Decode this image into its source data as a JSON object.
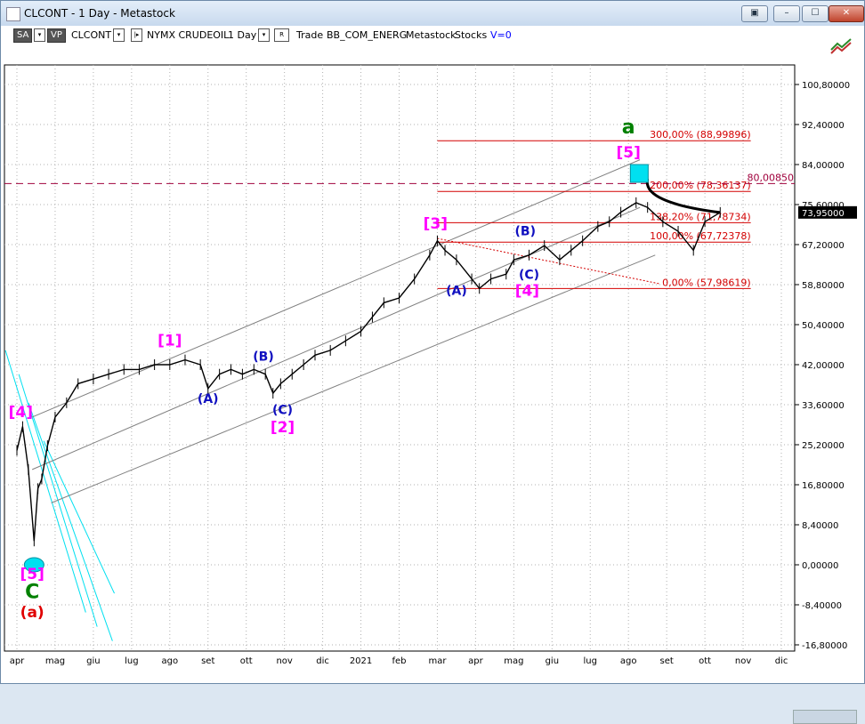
{
  "window": {
    "title": "CLCONT - 1 Day - Metastock",
    "buttons": [
      "▣",
      "–",
      "☐",
      "✕"
    ]
  },
  "toolbar": {
    "sa": "SA",
    "vp": "VP",
    "symbol": "CLCONT",
    "name": "NYMX CRUDEOIL",
    "period": "1 Day",
    "mode_btn": "R",
    "trade": "Trade",
    "bb": "BB_COM_ENERG",
    "metastock": "Metastock",
    "stocks": "Stocks",
    "v": "V=0"
  },
  "colors": {
    "price": "#000000",
    "channel": "#808080",
    "fib": "#d40000",
    "magenta": "#ff00ff",
    "blue": "#1010c0",
    "green": "#008000",
    "red": "#e00000",
    "cyan": "#00e0f0",
    "dashed": "#a0003c"
  },
  "chart_data": {
    "type": "line",
    "y_axis": {
      "ticks": [
        "100,80000",
        "92,40000",
        "84,00000",
        "75,60000",
        "67,20000",
        "58,80000",
        "50,40000",
        "42,00000",
        "33,60000",
        "25,20000",
        "16,80000",
        "8,40000",
        "0,00000",
        "-8,40000",
        "-16,80000"
      ],
      "tick_values": [
        100.8,
        92.4,
        84,
        75.6,
        67.2,
        58.8,
        50.4,
        42,
        33.6,
        25.2,
        16.8,
        8.4,
        0,
        -8.4,
        -16.8
      ],
      "ylim": [
        -16.8,
        108
      ]
    },
    "x_axis": {
      "ticks": [
        "apr",
        "mag",
        "giu",
        "lug",
        "ago",
        "set",
        "ott",
        "nov",
        "dic",
        "2021",
        "feb",
        "mar",
        "apr",
        "mag",
        "giu",
        "lug",
        "ago",
        "set",
        "ott",
        "nov",
        "dic"
      ],
      "tick_index": [
        0,
        1,
        2,
        3,
        4,
        5,
        6,
        7,
        8,
        9,
        10,
        11,
        12,
        13,
        14,
        15,
        16,
        17,
        18,
        19,
        20
      ]
    },
    "last_price": "73,95000",
    "dashed_level": {
      "label": "80,00850",
      "value": 80.0085
    },
    "fib_levels": [
      {
        "label": "300,00% (88,99896)",
        "value": 88.99896
      },
      {
        "label": "200,00% (78,36137)",
        "value": 78.36137
      },
      {
        "label": "138,20% (71,78734)",
        "value": 71.78734
      },
      {
        "label": "100,00% (67,72378)",
        "value": 67.72378
      },
      {
        "label": "0,00% (57,98619)",
        "value": 57.98619
      }
    ],
    "price_path": [
      [
        0,
        24
      ],
      [
        0.15,
        29
      ],
      [
        0.3,
        20
      ],
      [
        0.45,
        5
      ],
      [
        0.55,
        16
      ],
      [
        0.65,
        18
      ],
      [
        0.8,
        25
      ],
      [
        1.0,
        31
      ],
      [
        1.3,
        34
      ],
      [
        1.6,
        38
      ],
      [
        2.0,
        39
      ],
      [
        2.4,
        40
      ],
      [
        2.8,
        41
      ],
      [
        3.2,
        41
      ],
      [
        3.6,
        42
      ],
      [
        4.0,
        42
      ],
      [
        4.4,
        43
      ],
      [
        4.8,
        42
      ],
      [
        5.0,
        37
      ],
      [
        5.3,
        40
      ],
      [
        5.6,
        41
      ],
      [
        5.9,
        40
      ],
      [
        6.2,
        41
      ],
      [
        6.5,
        40
      ],
      [
        6.7,
        36
      ],
      [
        6.9,
        38
      ],
      [
        7.2,
        40
      ],
      [
        7.5,
        42
      ],
      [
        7.8,
        44
      ],
      [
        8.2,
        45
      ],
      [
        8.6,
        47
      ],
      [
        9.0,
        49
      ],
      [
        9.3,
        52
      ],
      [
        9.6,
        55
      ],
      [
        10.0,
        56
      ],
      [
        10.4,
        60
      ],
      [
        10.8,
        65
      ],
      [
        11.0,
        68
      ],
      [
        11.2,
        66
      ],
      [
        11.5,
        64
      ],
      [
        11.9,
        60
      ],
      [
        12.1,
        58
      ],
      [
        12.4,
        60
      ],
      [
        12.8,
        61
      ],
      [
        13.0,
        64
      ],
      [
        13.4,
        65
      ],
      [
        13.8,
        67
      ],
      [
        14.2,
        64
      ],
      [
        14.5,
        66
      ],
      [
        14.8,
        68
      ],
      [
        15.2,
        71
      ],
      [
        15.5,
        72
      ],
      [
        15.8,
        74
      ],
      [
        16.2,
        76
      ],
      [
        16.5,
        75
      ],
      [
        16.9,
        72
      ],
      [
        17.3,
        70
      ],
      [
        17.7,
        66
      ],
      [
        18.0,
        72
      ],
      [
        18.4,
        73.95
      ]
    ],
    "annotations": [
      {
        "text": "[4]",
        "x": 0.1,
        "y": 31,
        "color": "magenta"
      },
      {
        "text": "[5]",
        "x": 0.4,
        "y": -3,
        "color": "magenta"
      },
      {
        "text": "C",
        "x": 0.4,
        "y": -7,
        "color": "green"
      },
      {
        "text": "(a)",
        "x": 0.4,
        "y": -11,
        "color": "red"
      },
      {
        "text": "[1]",
        "x": 4.0,
        "y": 46,
        "color": "magenta"
      },
      {
        "text": "(A)",
        "x": 5.0,
        "y": 34,
        "color": "blue"
      },
      {
        "text": "(B)",
        "x": 6.45,
        "y": 42.8,
        "color": "blue"
      },
      {
        "text": "(C)",
        "x": 6.95,
        "y": 31.6,
        "color": "blue"
      },
      {
        "text": "[2]",
        "x": 6.95,
        "y": 27.8,
        "color": "magenta"
      },
      {
        "text": "[3]",
        "x": 10.95,
        "y": 70.6,
        "color": "magenta"
      },
      {
        "text": "(A)",
        "x": 11.5,
        "y": 56.7,
        "color": "blue"
      },
      {
        "text": "(B)",
        "x": 13.3,
        "y": 69.2,
        "color": "blue"
      },
      {
        "text": "(C)",
        "x": 13.4,
        "y": 60.0,
        "color": "blue"
      },
      {
        "text": "[4]",
        "x": 13.35,
        "y": 56.5,
        "color": "magenta"
      },
      {
        "text": "[5]",
        "x": 16.0,
        "y": 85.5,
        "color": "magenta"
      },
      {
        "text": "a",
        "x": 16.0,
        "y": 90.5,
        "color": "green"
      }
    ]
  }
}
